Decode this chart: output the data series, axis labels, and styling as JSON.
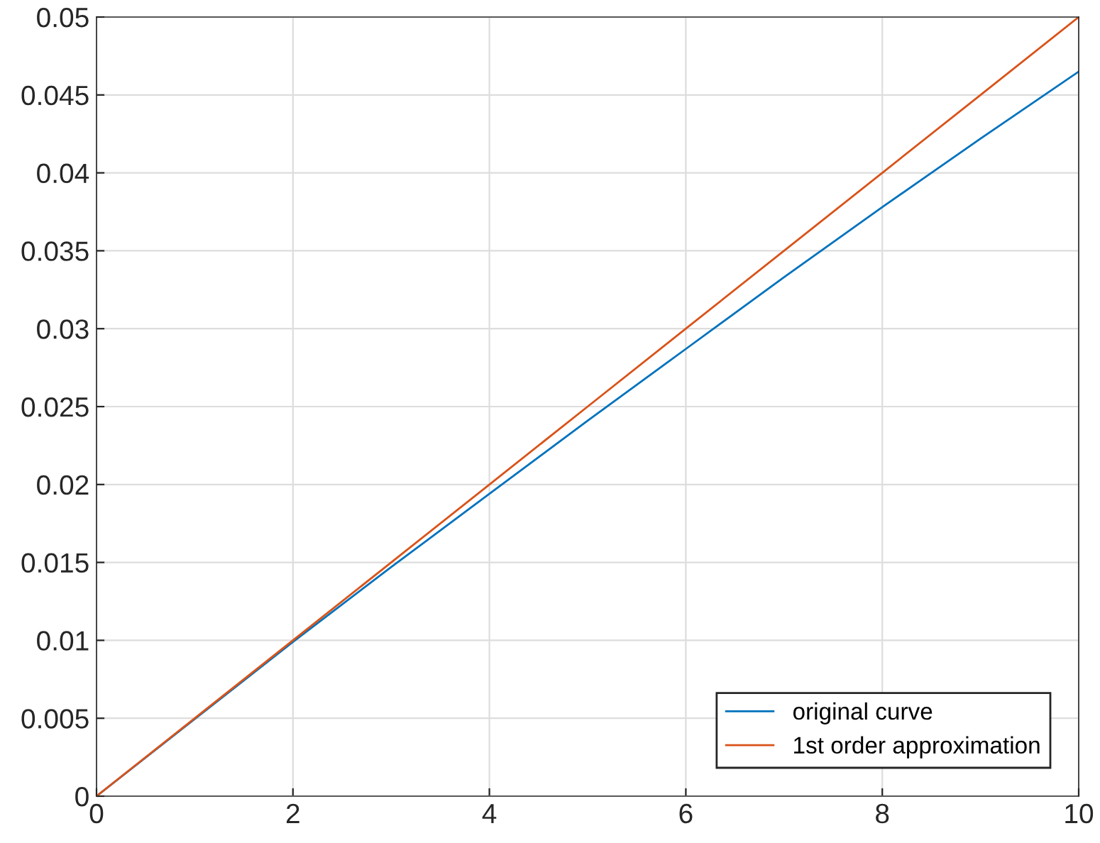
{
  "chart_data": {
    "type": "line",
    "x": [
      0,
      1,
      2,
      3,
      4,
      5,
      6,
      7,
      8,
      9,
      10
    ],
    "series": [
      {
        "name": "original curve",
        "color": "#0072bd",
        "x": [
          0,
          2,
          3,
          4,
          5,
          6,
          7,
          8,
          9,
          10
        ],
        "values": [
          0,
          0.0099,
          0.0147,
          0.0194,
          0.0241,
          0.0287,
          0.0333,
          0.0378,
          0.0422,
          0.0465
        ]
      },
      {
        "name": "1st order approximation",
        "color": "#d95319",
        "values": [
          0,
          0.005,
          0.01,
          0.015,
          0.02,
          0.025,
          0.03,
          0.035,
          0.04,
          0.045,
          0.05
        ]
      }
    ],
    "xlim": [
      0,
      10
    ],
    "xticks": [
      0,
      2,
      4,
      6,
      8,
      10
    ],
    "ylim": [
      0,
      0.05
    ],
    "yticks": [
      {
        "value": 0,
        "label": "0"
      },
      {
        "value": 0.005,
        "label": "0.005"
      },
      {
        "value": 0.01,
        "label": "0.01"
      },
      {
        "value": 0.015,
        "label": "0.015"
      },
      {
        "value": 0.02,
        "label": "0.02"
      },
      {
        "value": 0.025,
        "label": "0.025"
      },
      {
        "value": 0.03,
        "label": "0.03"
      },
      {
        "value": 0.035,
        "label": "0.035"
      },
      {
        "value": 0.04,
        "label": "0.04"
      },
      {
        "value": 0.045,
        "label": "0.045"
      },
      {
        "value": 0.05,
        "label": "0.05"
      }
    ],
    "grid": true,
    "legend": "bottom right",
    "line_style": "solid",
    "marker": "none"
  }
}
